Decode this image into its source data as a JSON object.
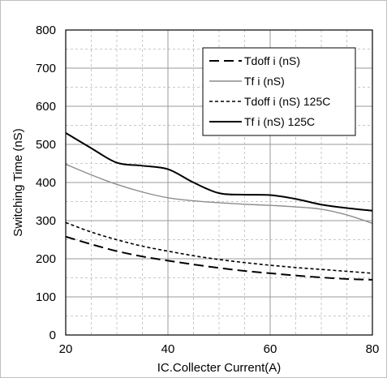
{
  "chart_data": {
    "type": "line",
    "title": "",
    "xlabel": "IC.Collecter Current(A)",
    "ylabel": "Switching Time (nS)",
    "xlim": [
      20,
      80
    ],
    "ylim": [
      0,
      800
    ],
    "x_ticks": [
      "20",
      "40",
      "60",
      "80"
    ],
    "y_ticks": [
      "0",
      "100",
      "200",
      "300",
      "400",
      "500",
      "600",
      "700",
      "800"
    ],
    "x_tick_values": [
      20,
      40,
      60,
      80
    ],
    "y_tick_values": [
      0,
      100,
      200,
      300,
      400,
      500,
      600,
      700,
      800
    ],
    "x_minor_step": 5,
    "y_minor_step": 50,
    "grid": "major solid, minor dashed",
    "legend_position": "top-right",
    "series": [
      {
        "name": "Tdoff i (nS)",
        "style": "long-dash",
        "color": "#000000",
        "x": [
          20,
          25,
          30,
          35,
          40,
          45,
          50,
          55,
          60,
          65,
          70,
          75,
          80
        ],
        "y": [
          258,
          238,
          220,
          206,
          195,
          185,
          176,
          168,
          162,
          156,
          151,
          147,
          145
        ]
      },
      {
        "name": "Tf i (nS)",
        "style": "thin-solid-gray",
        "color": "#8c8c8c",
        "x": [
          20,
          25,
          30,
          35,
          40,
          45,
          50,
          55,
          60,
          65,
          70,
          75,
          80
        ],
        "y": [
          448,
          420,
          395,
          375,
          360,
          352,
          347,
          343,
          340,
          336,
          330,
          315,
          293
        ]
      },
      {
        "name": "Tdoff i (nS) 125C",
        "style": "short-dash",
        "color": "#000000",
        "x": [
          20,
          25,
          30,
          35,
          40,
          45,
          50,
          55,
          60,
          65,
          70,
          75,
          80
        ],
        "y": [
          295,
          270,
          250,
          233,
          220,
          208,
          198,
          190,
          183,
          177,
          172,
          167,
          162
        ]
      },
      {
        "name": "Tf i (nS) 125C",
        "style": "thick-solid",
        "color": "#000000",
        "x": [
          20,
          25,
          30,
          35,
          40,
          45,
          50,
          55,
          60,
          65,
          70,
          75,
          80
        ],
        "y": [
          530,
          490,
          452,
          444,
          435,
          400,
          372,
          368,
          367,
          357,
          342,
          333,
          326
        ]
      }
    ]
  }
}
